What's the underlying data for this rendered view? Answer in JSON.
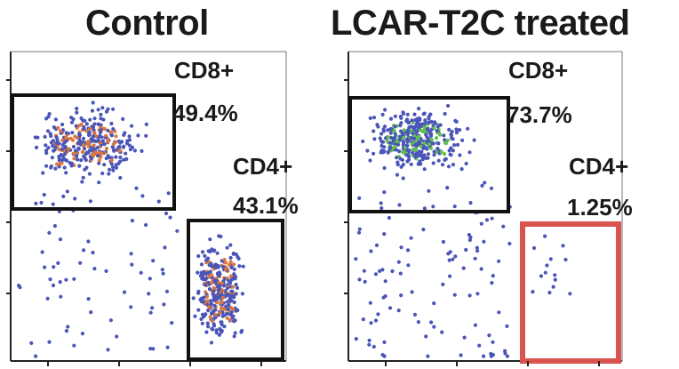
{
  "chart_data": [
    {
      "type": "scatter",
      "title": "Control",
      "xlabel": "",
      "ylabel": "",
      "gates": [
        {
          "name": "CD8+",
          "percent": "49.4%"
        },
        {
          "name": "CD4+",
          "percent": "43.1%"
        }
      ],
      "populations": [
        {
          "name": "CD8+ cluster",
          "count": 330,
          "x_range": [
            0.0,
            0.55
          ],
          "y_range": [
            0.55,
            0.85
          ]
        },
        {
          "name": "CD4+ cluster",
          "count": 320,
          "x_range": [
            0.64,
            0.88
          ],
          "y_range": [
            0.0,
            0.45
          ]
        },
        {
          "name": "scattered",
          "count": 70,
          "x_range": [
            0.02,
            0.62
          ],
          "y_range": [
            0.0,
            0.55
          ]
        }
      ],
      "dot_color": "#4a55b8",
      "highlight_color": "#d9773f"
    },
    {
      "type": "scatter",
      "title": "LCAR-T2C treated",
      "xlabel": "",
      "ylabel": "",
      "gates": [
        {
          "name": "CD8+",
          "percent": "73.7%"
        },
        {
          "name": "CD4+",
          "percent": "1.25%"
        }
      ],
      "populations": [
        {
          "name": "CD8+ cluster",
          "count": 360,
          "x_range": [
            0.0,
            0.5
          ],
          "y_range": [
            0.58,
            0.85
          ]
        },
        {
          "name": "CD4+ cluster",
          "count": 14,
          "x_range": [
            0.62,
            0.85
          ],
          "y_range": [
            0.1,
            0.5
          ]
        },
        {
          "name": "scattered",
          "count": 110,
          "x_range": [
            0.02,
            0.6
          ],
          "y_range": [
            0.0,
            0.58
          ]
        }
      ],
      "dot_color": "#4a55b8",
      "highlight_color": "#5fbf4f",
      "highlighted_gate_color": "#d9534f"
    }
  ]
}
